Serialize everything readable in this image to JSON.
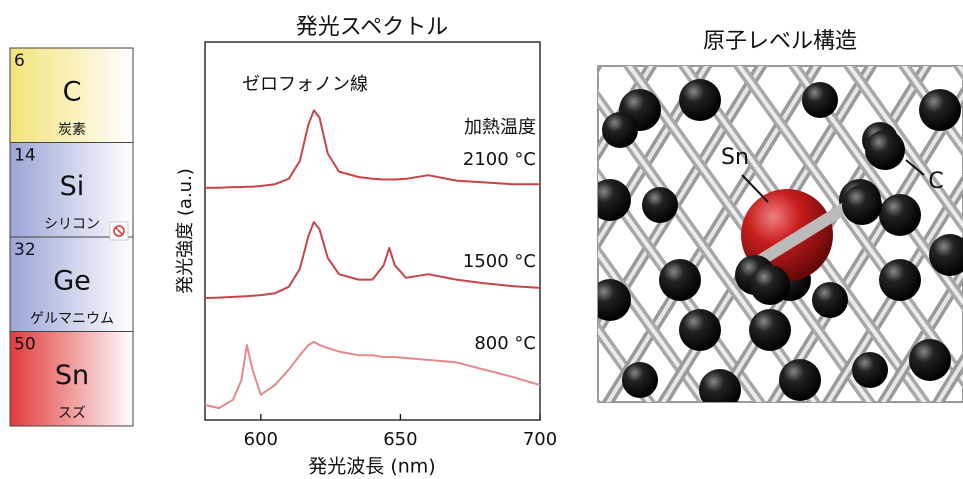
{
  "periodic_table": [
    {
      "number": "6",
      "symbol": "C",
      "name": "炭素",
      "color": "#f3e27a"
    },
    {
      "number": "14",
      "symbol": "Si",
      "name": "シリコン",
      "color": "#9aa6d6"
    },
    {
      "number": "32",
      "symbol": "Ge",
      "name": "ゲルマニウム",
      "color": "#9aa6d6"
    },
    {
      "number": "50",
      "symbol": "Sn",
      "name": "スズ",
      "color": "#e23a3a"
    }
  ],
  "chart_data": {
    "type": "line",
    "title": "発光スペクトル",
    "x_label": "発光波長 (nm)",
    "y_label": "発光強度 (a.u.)",
    "annotations": [
      "ゼロフォノン線",
      "加熱温度"
    ],
    "x": [
      580,
      585,
      590,
      593,
      595,
      597,
      600,
      605,
      610,
      614,
      617,
      619,
      621,
      624,
      628,
      635,
      640,
      644,
      646,
      648,
      652,
      660,
      670,
      680,
      690,
      700
    ],
    "series": [
      {
        "name": "2100 °C",
        "color": "#c94444",
        "values": [
          6.45,
          6.45,
          6.47,
          6.47,
          6.48,
          6.48,
          6.5,
          6.55,
          6.7,
          7.2,
          8.2,
          8.6,
          8.4,
          7.4,
          6.9,
          6.75,
          6.7,
          6.68,
          6.68,
          6.68,
          6.7,
          6.8,
          6.65,
          6.6,
          6.55,
          6.55
        ]
      },
      {
        "name": "1500 °C",
        "color": "#c94444",
        "values": [
          3.39,
          3.4,
          3.42,
          3.43,
          3.44,
          3.45,
          3.47,
          3.52,
          3.7,
          4.2,
          5.1,
          5.5,
          5.3,
          4.5,
          4.05,
          3.9,
          3.9,
          4.3,
          4.78,
          4.3,
          3.95,
          4.05,
          3.9,
          3.8,
          3.72,
          3.67
        ]
      },
      {
        "name": "800 °C",
        "color": "#e48a8a",
        "values": [
          0.42,
          0.33,
          0.56,
          1.1,
          2.08,
          1.4,
          0.7,
          0.97,
          1.4,
          1.8,
          2.08,
          2.17,
          2.08,
          2.0,
          1.9,
          1.8,
          1.8,
          1.75,
          1.75,
          1.75,
          1.72,
          1.67,
          1.6,
          1.4,
          1.2,
          0.97
        ]
      }
    ],
    "xlim": [
      580,
      700
    ],
    "xticks": [
      600,
      650,
      700
    ],
    "ylim": [
      0,
      10.5
    ]
  },
  "structure": {
    "title": "原子レベル構造",
    "labels": [
      "Sn",
      "C"
    ]
  }
}
